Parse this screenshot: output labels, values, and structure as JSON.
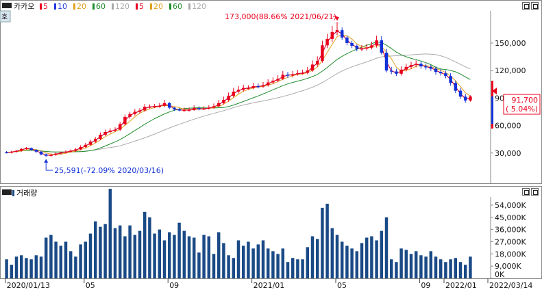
{
  "window": {
    "code_label": "호",
    "price_pane_indicator": "■"
  },
  "price_legend": {
    "title": "카카오",
    "ma_labels": [
      "5",
      "10",
      "20",
      "60",
      "120",
      "5",
      "20",
      "60",
      "120"
    ],
    "ma_colors": [
      "#e8001c",
      "#2038e0",
      "#e0a020",
      "#1e8c2a",
      "#aaaaaa",
      "#e8001c",
      "#e0a020",
      "#1e8c2a",
      "#aaaaaa"
    ]
  },
  "volume_legend": {
    "title": "거래량"
  },
  "annotations": {
    "high": "173,000(88.66% 2021/06/21)",
    "low": "25,591(-72.09% 2020/03/16)"
  },
  "current_price": {
    "value": "91,700",
    "change": "( 5.04%)",
    "color": "#e8001c"
  },
  "x_axis_labels": [
    "2020/01/13",
    "05",
    "09",
    "2021/01",
    "05",
    "09",
    "2022/01",
    "2022/03/14"
  ],
  "price_axis_labels": [
    "150,000",
    "120,000",
    "90,000",
    "60,000",
    "30,000"
  ],
  "volume_axis_labels": [
    "54,000K",
    "45,000K",
    "36,000K",
    "27,000K",
    "18,000K",
    "9,000K",
    "0K"
  ],
  "colors": {
    "up": "#e8001c",
    "down": "#1030d8",
    "volume": "#1a4a86",
    "ma5": "#e8001c",
    "ma10": "#2038e0",
    "ma20": "#e0a020",
    "ma60": "#1e8c2a",
    "ma120": "#aaaaaa"
  },
  "chart_data": [
    {
      "type": "candlestick",
      "title": "카카오",
      "x_range": [
        "2020/01/13",
        "2022/03/14"
      ],
      "ylim": [
        0,
        185000
      ],
      "y_ticks": [
        30000,
        60000,
        90000,
        120000,
        150000
      ],
      "weekly_ohlc": {
        "open": [
          31000,
          30500,
          31500,
          32500,
          34500,
          35500,
          33500,
          31500,
          28500,
          27000,
          28000,
          29500,
          30500,
          31500,
          32500,
          34000,
          36500,
          39000,
          42500,
          45500,
          50000,
          53000,
          54500,
          55500,
          61500,
          69500,
          72500,
          75000,
          76500,
          80500,
          80500,
          81000,
          81500,
          84500,
          79500,
          77500,
          76500,
          77000,
          77000,
          79000,
          78000,
          78500,
          79500,
          81000,
          84500,
          88000,
          92500,
          97000,
          99000,
          101000,
          101000,
          103000,
          102500,
          104000,
          107000,
          109000,
          111000,
          115500,
          114500,
          116000,
          117000,
          117500,
          120000,
          126500,
          130500,
          147500,
          154500,
          162000,
          164000,
          156000,
          150000,
          147000,
          143500,
          144000,
          145000,
          147500,
          153000,
          139500,
          120000,
          119000,
          116500,
          121000,
          124000,
          126000,
          127500,
          124500,
          124000,
          122000,
          118500,
          117000,
          114000,
          106500,
          98000,
          91500,
          87300
        ],
        "close": [
          30500,
          31500,
          32500,
          34500,
          35500,
          33500,
          31500,
          28500,
          27000,
          28000,
          29500,
          30500,
          31500,
          32500,
          34000,
          36500,
          39000,
          42500,
          45500,
          50000,
          53000,
          54500,
          55500,
          61500,
          69500,
          72500,
          75000,
          76500,
          80500,
          80500,
          81000,
          81500,
          84500,
          79500,
          77500,
          76500,
          77000,
          77000,
          79000,
          78000,
          78500,
          79500,
          81000,
          84500,
          88000,
          92500,
          97000,
          99000,
          101000,
          101000,
          103000,
          102500,
          104000,
          107000,
          109000,
          111000,
          115500,
          114500,
          116000,
          117000,
          117500,
          120000,
          126500,
          130500,
          147500,
          154500,
          162000,
          164000,
          156000,
          150000,
          147000,
          143500,
          144000,
          145000,
          147500,
          153000,
          139500,
          120000,
          119000,
          116500,
          121000,
          124000,
          126000,
          127500,
          124500,
          124000,
          122000,
          118500,
          117000,
          114000,
          106500,
          98000,
          91500,
          87300,
          91700
        ],
        "high": [
          32000,
          32500,
          33500,
          35500,
          36500,
          36000,
          34000,
          32500,
          29500,
          29500,
          30500,
          31500,
          33000,
          34000,
          35500,
          38500,
          41000,
          44500,
          47500,
          52500,
          55500,
          57000,
          58000,
          64000,
          72000,
          75000,
          78000,
          79000,
          83500,
          83000,
          83500,
          84500,
          88000,
          85500,
          80000,
          79000,
          79500,
          79500,
          82000,
          81000,
          81000,
          82000,
          84000,
          88000,
          91500,
          96000,
          101000,
          103000,
          104500,
          104000,
          106500,
          106000,
          107500,
          110500,
          112500,
          115000,
          119500,
          118500,
          119500,
          120500,
          121000,
          124000,
          131000,
          135500,
          152500,
          160000,
          168500,
          173000,
          167000,
          158000,
          152500,
          148500,
          148000,
          149000,
          151500,
          158000,
          157500,
          143500,
          124000,
          122000,
          124500,
          127500,
          129500,
          131000,
          130000,
          127500,
          126000,
          124500,
          121500,
          120000,
          117000,
          109000,
          101000,
          94500,
          93000
        ],
        "low": [
          29500,
          29500,
          30500,
          31500,
          33500,
          32500,
          30000,
          27500,
          25591,
          26000,
          27000,
          28500,
          29500,
          30500,
          31500,
          33000,
          35500,
          38000,
          41000,
          44000,
          48500,
          51500,
          53000,
          54000,
          60000,
          67500,
          71000,
          73000,
          75000,
          78500,
          79000,
          79500,
          80000,
          78000,
          76000,
          75500,
          75000,
          75500,
          76000,
          76500,
          77000,
          77500,
          78500,
          80000,
          83000,
          86000,
          90500,
          95000,
          97000,
          99000,
          99500,
          100500,
          101000,
          102500,
          105000,
          107500,
          109500,
          112000,
          112500,
          114500,
          115500,
          116000,
          118500,
          124000,
          128500,
          144500,
          151000,
          158500,
          153500,
          147500,
          144500,
          141000,
          141000,
          142000,
          143000,
          145000,
          137500,
          118000,
          116000,
          114000,
          114500,
          119000,
          121500,
          123500,
          122000,
          121000,
          119500,
          115500,
          114500,
          111500,
          103500,
          95500,
          89000,
          84900,
          86000
        ]
      },
      "volume_k": [
        14000,
        10000,
        16000,
        17000,
        15000,
        14000,
        17000,
        16000,
        30000,
        32000,
        27000,
        24000,
        27000,
        20000,
        16000,
        25000,
        27000,
        33000,
        42000,
        38000,
        40000,
        66000,
        37000,
        39000,
        31000,
        39000,
        32000,
        35000,
        49000,
        45000,
        33000,
        36000,
        28000,
        34000,
        32000,
        41000,
        35000,
        31000,
        30000,
        19000,
        32000,
        31000,
        18000,
        34000,
        26000,
        17000,
        15000,
        28000,
        24000,
        27000,
        22000,
        25000,
        28000,
        22000,
        20000,
        18000,
        22000,
        12000,
        15000,
        14000,
        14000,
        23000,
        31000,
        29000,
        52000,
        55000,
        37000,
        32000,
        27000,
        24000,
        22000,
        20000,
        26000,
        30000,
        31000,
        28000,
        35000,
        45000,
        14000,
        12000,
        22000,
        21000,
        18000,
        20000,
        17000,
        16000,
        20000,
        16000,
        14000,
        12000,
        14000,
        15000,
        12000,
        10000,
        16000
      ]
    }
  ]
}
